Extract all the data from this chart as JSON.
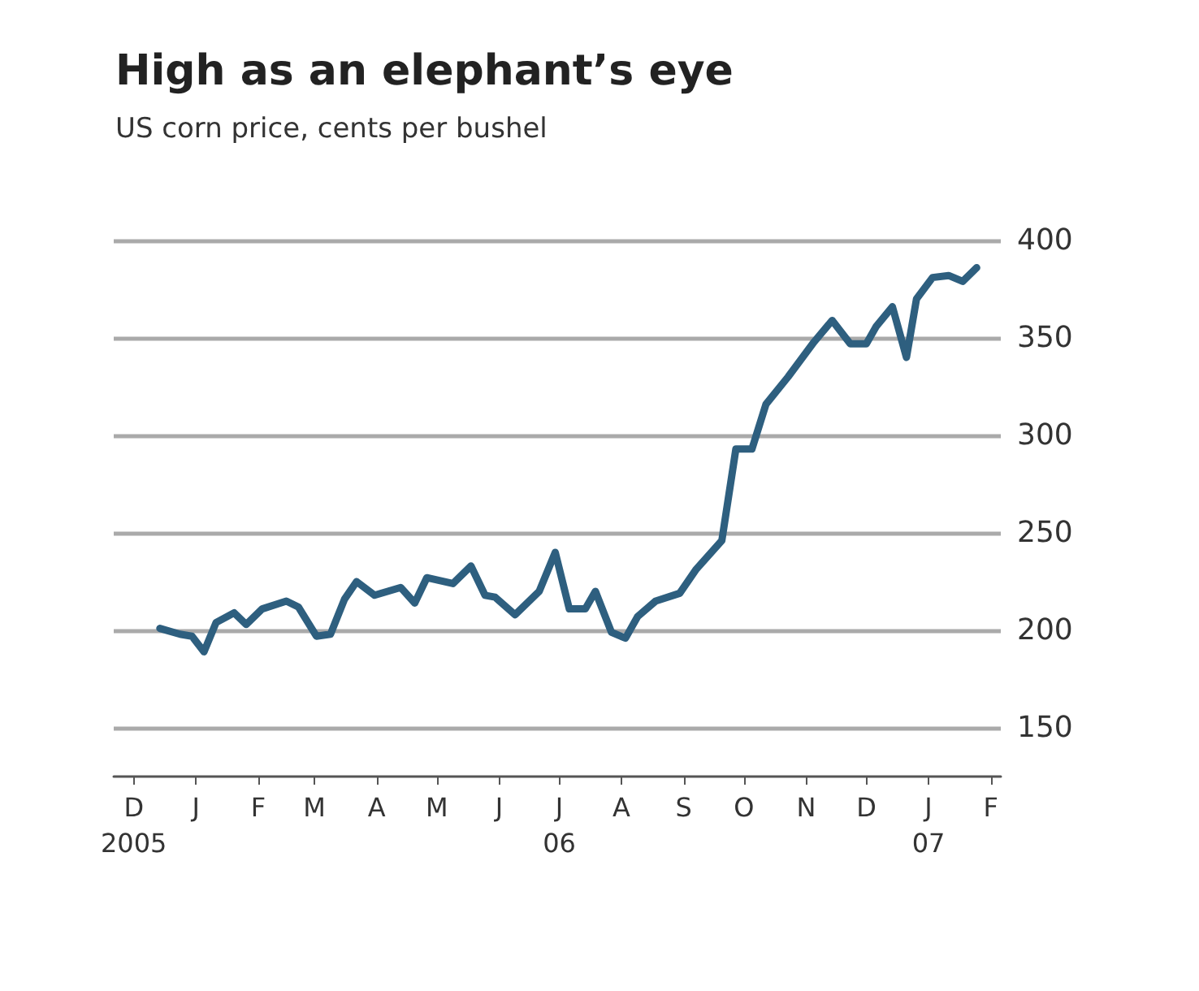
{
  "chart_data": {
    "type": "line",
    "title": "High as an elephant’s eye",
    "subtitle": "US corn price, cents per bushel",
    "x": [
      "2005-12-28",
      "2006-01-07",
      "2006-01-13",
      "2006-01-19",
      "2006-01-25",
      "2006-02-03",
      "2006-02-09",
      "2006-02-17",
      "2006-03-01",
      "2006-03-07",
      "2006-03-16",
      "2006-03-23",
      "2006-03-30",
      "2006-04-05",
      "2006-04-14",
      "2006-04-27",
      "2006-05-04",
      "2006-05-10",
      "2006-05-23",
      "2006-06-01",
      "2006-06-08",
      "2006-06-13",
      "2006-06-23",
      "2006-07-05",
      "2006-07-13",
      "2006-07-20",
      "2006-07-28",
      "2006-08-02",
      "2006-08-10",
      "2006-08-17",
      "2006-08-23",
      "2006-09-01",
      "2006-09-13",
      "2006-09-21",
      "2006-10-04",
      "2006-10-11",
      "2006-10-19",
      "2006-10-26",
      "2006-11-06",
      "2006-11-19",
      "2006-11-28",
      "2006-12-07",
      "2006-12-15",
      "2006-12-20",
      "2006-12-28",
      "2007-01-04",
      "2007-01-09",
      "2007-01-17",
      "2007-01-25",
      "2007-02-01",
      "2007-02-08"
    ],
    "series": [
      {
        "color": "#2e5f7f",
        "values": [
          201,
          198,
          197,
          189,
          204,
          209,
          203,
          211,
          215,
          212,
          197,
          198,
          216,
          225,
          218,
          222,
          214,
          227,
          224,
          233,
          218,
          217,
          208,
          220,
          240,
          211,
          211,
          220,
          199,
          196,
          207,
          215,
          219,
          231,
          246,
          293,
          293,
          316,
          330,
          348,
          359,
          347,
          347,
          356,
          366,
          340,
          370,
          381,
          382,
          379,
          386
        ]
      }
    ],
    "xlim": [
      "2005-12-05",
      "2007-02-20"
    ],
    "xticks": [
      {
        "value": "2005-12-15",
        "label": "D\n2005"
      },
      {
        "value": "2006-01-15",
        "label": "J"
      },
      {
        "value": "2006-02-15",
        "label": "F"
      },
      {
        "value": "2006-03-15",
        "label": "M"
      },
      {
        "value": "2006-04-15",
        "label": "A"
      },
      {
        "value": "2006-05-15",
        "label": "M"
      },
      {
        "value": "2006-06-15",
        "label": "J"
      },
      {
        "value": "2006-07-15",
        "label": "J\n06"
      },
      {
        "value": "2006-08-15",
        "label": "A"
      },
      {
        "value": "2006-09-15",
        "label": "S"
      },
      {
        "value": "2006-10-15",
        "label": "O"
      },
      {
        "value": "2006-11-15",
        "label": "N"
      },
      {
        "value": "2006-12-15",
        "label": "D"
      },
      {
        "value": "2007-01-15",
        "label": "J\n07"
      },
      {
        "value": "2007-02-15",
        "label": "F"
      }
    ],
    "ylim": [
      125,
      400
    ],
    "yticks": [
      150,
      200,
      250,
      300,
      350,
      400
    ],
    "grid": "y",
    "line_style": "solid",
    "marker": "none"
  }
}
